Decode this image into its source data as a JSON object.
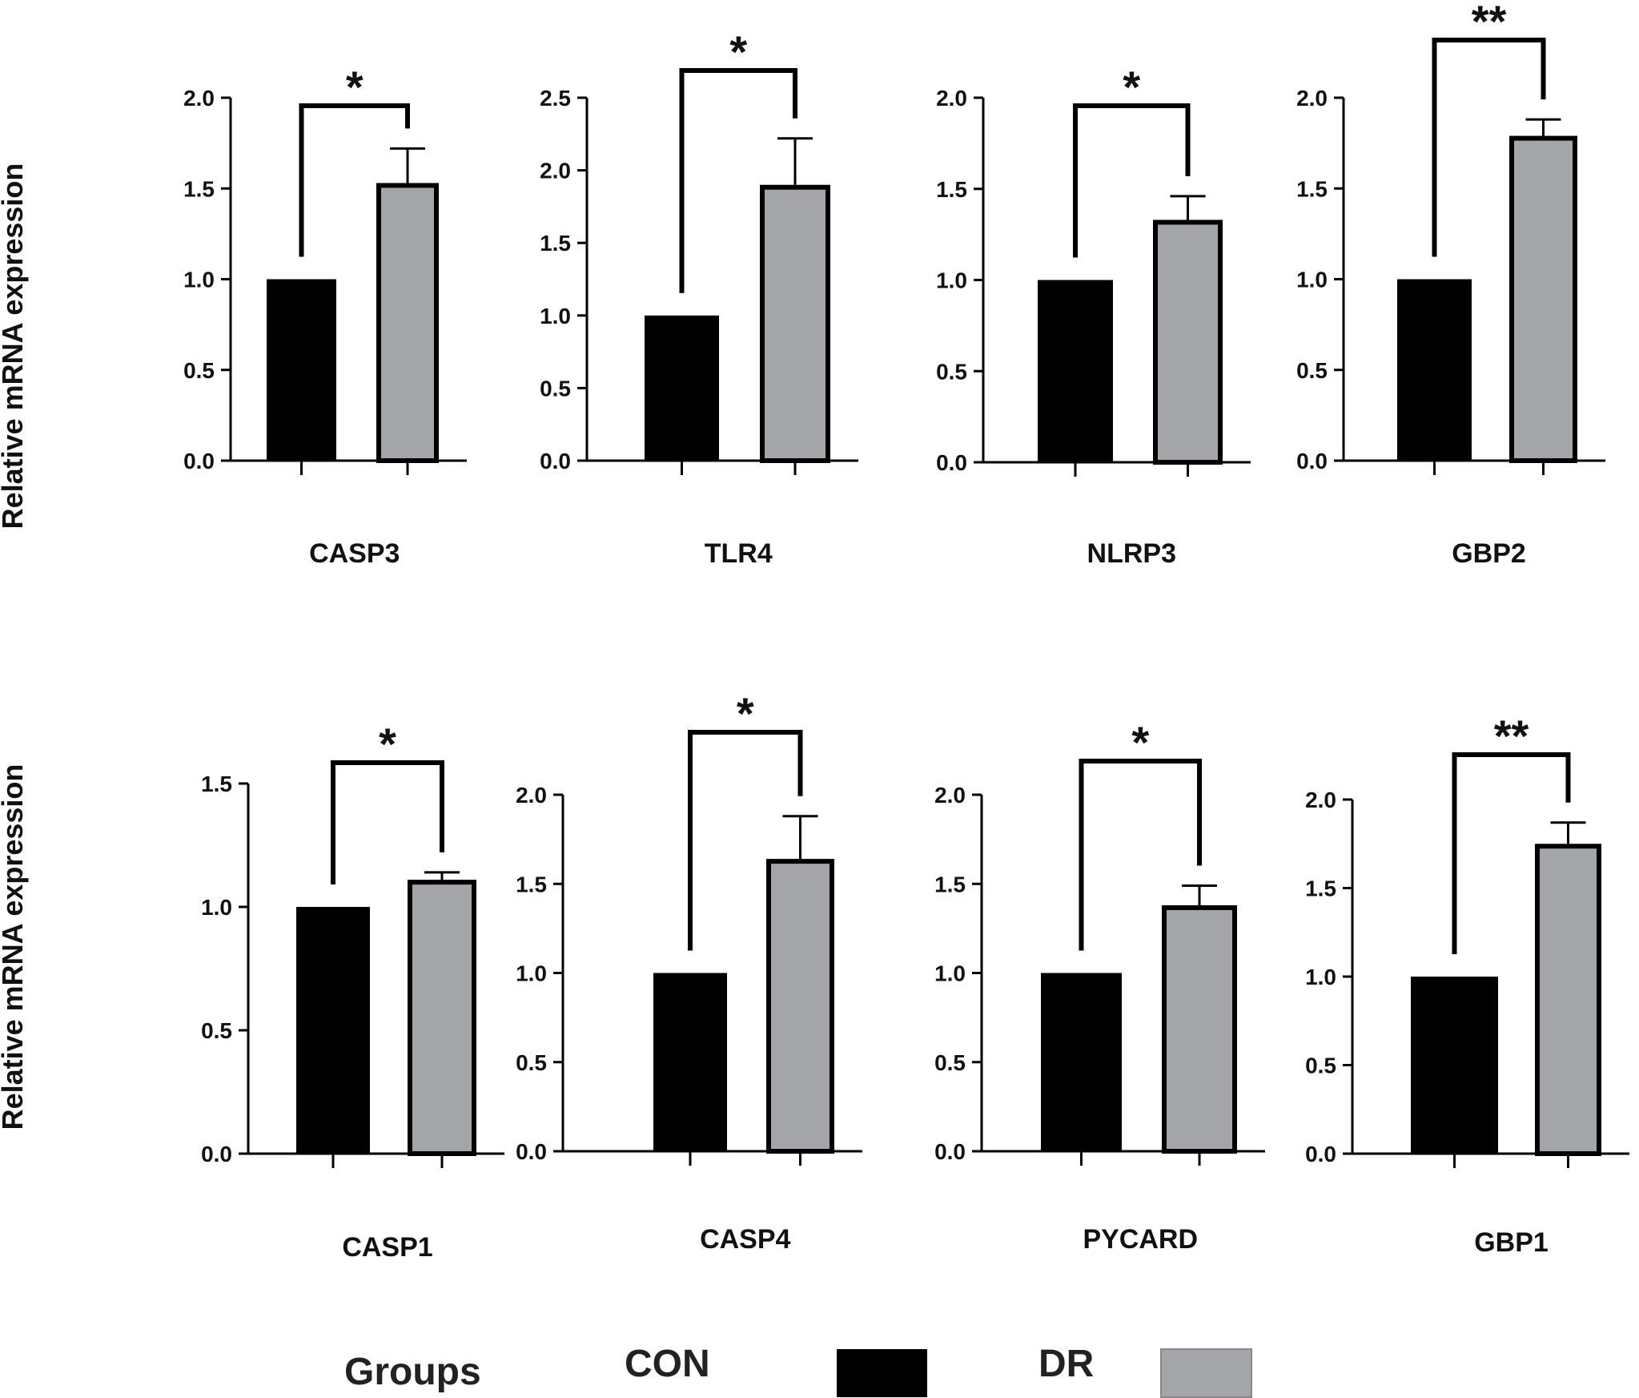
{
  "ylabel": "Relative mRNA expression",
  "legend": {
    "title": "Groups",
    "items": [
      {
        "label": "CON",
        "color": "#000000"
      },
      {
        "label": "DR",
        "color": "#a3a5a8"
      }
    ]
  },
  "colors": {
    "con": "#000000",
    "dr": "#a3a5a8",
    "outline": "#000000"
  },
  "chart_data": [
    {
      "type": "bar",
      "title": "CASP3",
      "categories": [
        "CON",
        "DR"
      ],
      "values": [
        1.0,
        1.53
      ],
      "errors": [
        0,
        0.19
      ],
      "ylim": [
        0,
        2.0
      ],
      "yticks": [
        0.0,
        0.5,
        1.0,
        1.5,
        2.0
      ],
      "yticklabels": [
        "0.0",
        "0.5",
        "1.0",
        "1.5",
        "2.0"
      ],
      "significance": "*"
    },
    {
      "type": "bar",
      "title": "TLR4",
      "categories": [
        "CON",
        "DR"
      ],
      "values": [
        1.0,
        1.9
      ],
      "errors": [
        0,
        0.32
      ],
      "ylim": [
        0,
        2.5
      ],
      "yticks": [
        0.0,
        0.5,
        1.0,
        1.5,
        2.0,
        2.5
      ],
      "yticklabels": [
        "0.0",
        "0.5",
        "1.0",
        "1.5",
        "2.0",
        "2.5"
      ],
      "significance": "*"
    },
    {
      "type": "bar",
      "title": "NLRP3",
      "categories": [
        "CON",
        "DR"
      ],
      "values": [
        1.0,
        1.33
      ],
      "errors": [
        0,
        0.13
      ],
      "ylim": [
        0,
        2.0
      ],
      "yticks": [
        0.0,
        0.5,
        1.0,
        1.5,
        2.0
      ],
      "yticklabels": [
        "0.0",
        "0.5",
        "1.0",
        "1.5",
        "2.0"
      ],
      "significance": "*"
    },
    {
      "type": "bar",
      "title": "GBP2",
      "categories": [
        "CON",
        "DR"
      ],
      "values": [
        1.0,
        1.79
      ],
      "errors": [
        0,
        0.09
      ],
      "ylim": [
        0,
        2.0
      ],
      "yticks": [
        0.0,
        0.5,
        1.0,
        1.5,
        2.0
      ],
      "yticklabels": [
        "0.0",
        "0.5",
        "1.0",
        "1.5",
        "2.0"
      ],
      "significance": "**"
    },
    {
      "type": "bar",
      "title": "CASP1",
      "categories": [
        "CON",
        "DR"
      ],
      "values": [
        1.0,
        1.11
      ],
      "errors": [
        0,
        0.03
      ],
      "ylim": [
        0,
        1.5
      ],
      "yticks": [
        0.0,
        0.5,
        1.0,
        1.5
      ],
      "yticklabels": [
        "0.0",
        "0.5",
        "1.0",
        "1.5"
      ],
      "significance": "*"
    },
    {
      "type": "bar",
      "title": "CASP4",
      "categories": [
        "CON",
        "DR"
      ],
      "values": [
        1.0,
        1.64
      ],
      "errors": [
        0,
        0.24
      ],
      "ylim": [
        0,
        2.0
      ],
      "yticks": [
        0.0,
        0.5,
        1.0,
        1.5,
        2.0
      ],
      "yticklabels": [
        "0.0",
        "0.5",
        "1.0",
        "1.5",
        "2.0"
      ],
      "significance": "*"
    },
    {
      "type": "bar",
      "title": "PYCARD",
      "categories": [
        "CON",
        "DR"
      ],
      "values": [
        1.0,
        1.38
      ],
      "errors": [
        0,
        0.11
      ],
      "ylim": [
        0,
        2.0
      ],
      "yticks": [
        0.0,
        0.5,
        1.0,
        1.5,
        2.0
      ],
      "yticklabels": [
        "0.0",
        "0.5",
        "1.0",
        "1.5",
        "2.0"
      ],
      "significance": "*"
    },
    {
      "type": "bar",
      "title": "GBP1",
      "categories": [
        "CON",
        "DR"
      ],
      "values": [
        1.0,
        1.75
      ],
      "errors": [
        0,
        0.12
      ],
      "ylim": [
        0,
        2.0
      ],
      "yticks": [
        0.0,
        0.5,
        1.0,
        1.5,
        2.0
      ],
      "yticklabels": [
        "0.0",
        "0.5",
        "1.0",
        "1.5",
        "2.0"
      ],
      "significance": "**"
    }
  ]
}
